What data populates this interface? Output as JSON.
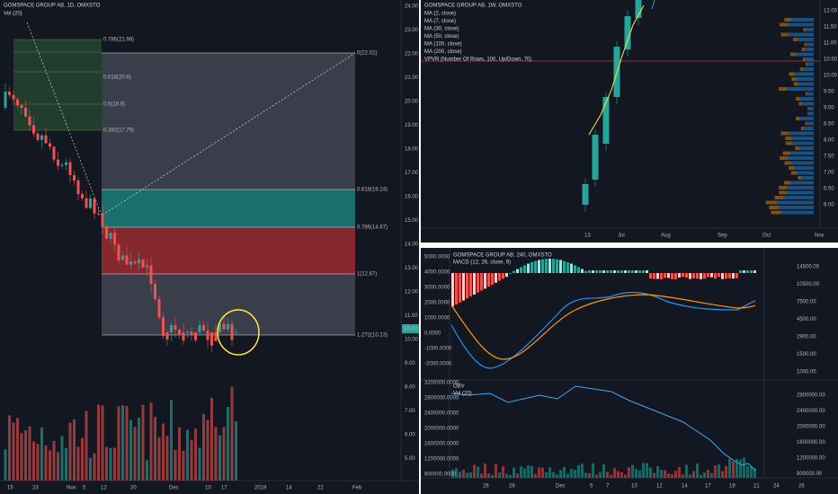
{
  "left_chart": {
    "title": "GOMSPACE GROUP AB, 1D, OMXSTO",
    "volume_label": "Vol (20)",
    "fib_labels": [
      "0(22.02)",
      "0.618(16.24)",
      "0.786(14.67)",
      "1(12.67)",
      "1.272(10.13)"
    ],
    "inner_fib_labels": [
      "0.786(21.98)",
      "0.618(20.8)",
      "0.5(19.9)",
      "0.382(17.79)"
    ],
    "price_axis": [
      "24.00",
      "23.00",
      "22.00",
      "21.00",
      "20.00",
      "19.00",
      "18.00",
      "17.00",
      "16.00",
      "15.00",
      "14.00",
      "13.00",
      "12.00",
      "11.00",
      "10.00",
      "9.00",
      "8.00",
      "7.00",
      "6.00",
      "5.00"
    ],
    "last_price": "10.40",
    "time_axis": [
      "15",
      "23",
      "Nov",
      "5",
      "12",
      "20",
      "Dec",
      "10",
      "17",
      "2019",
      "14",
      "22",
      "Feb"
    ]
  },
  "weekly_chart": {
    "title": "GOMSPACE GROUP AB, 1W, OMXSTO",
    "indicators": [
      "MA (2, close)",
      "MA (7, close)",
      "MA (30, close)",
      "MA (50, close)",
      "MA (100, close)",
      "MA (200, close)",
      "VPVR (Number Of Rows, 100, Up/Down, 70)"
    ],
    "price_axis": [
      "12.00",
      "11.50",
      "11.00",
      "10.50",
      "10.00",
      "9.50",
      "9.00",
      "8.50",
      "8.00",
      "7.50",
      "7.00",
      "6.50",
      "6.00"
    ],
    "time_axis": [
      "13",
      "Jul",
      "Aug",
      "Sep",
      "Oct",
      "Nov"
    ]
  },
  "intraday_chart": {
    "title": "GOMSPACE GROUP AB, 240, OMXSTO",
    "macd_label": "MACD (12, 26, close, 9)",
    "macd_left_axis": [
      "5000.0000",
      "4000.0000",
      "3000.0000",
      "2000.0000",
      "1000.0000",
      "0.0000",
      "-1000.0000",
      "-2000.0000"
    ],
    "macd_right_axis": [
      "14500.00",
      "10500.00",
      "7500.00",
      "4500.00",
      "2900.00",
      "1500.00",
      "1000.00"
    ],
    "obv_label": "OBV",
    "volume_label": "Vol (20)",
    "obv_left_axis": [
      "3200000.0000",
      "2800000.0000",
      "2400000.0000",
      "2000000.0000",
      "1600000.0000",
      "1200000.0000",
      "800000.0000"
    ],
    "obv_right_axis": [
      "2800000.00",
      "2400000.00",
      "2000000.00",
      "1600000.00",
      "1200000.00",
      "800000.00"
    ],
    "time_axis": [
      "26",
      "28",
      "Dec",
      "5",
      "7",
      "10",
      "12",
      "14",
      "17",
      "19",
      "21",
      "24",
      "26"
    ]
  }
}
